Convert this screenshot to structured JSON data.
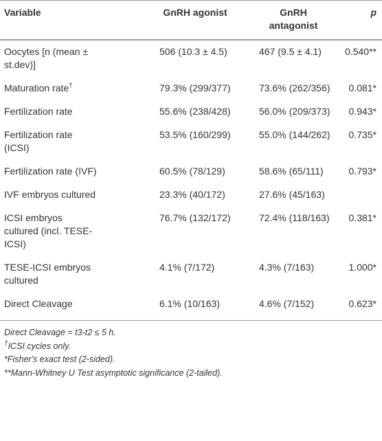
{
  "table": {
    "header": [
      "Variable",
      "GnRH agonist",
      "GnRH antagonist",
      "p"
    ],
    "rows": [
      [
        {
          "text": "Oocytes [n (mean ± st.dev)]",
          "mark": null
        },
        "506 (10.3 ± 4.5)",
        "467 (9.5 ± 4.1)",
        "0.540**"
      ],
      [
        {
          "text": "Maturation rate",
          "mark": "†"
        },
        "79.3% (299/377)",
        "73.6% (262/356)",
        "0.081*"
      ],
      [
        {
          "text": "Fertilization rate",
          "mark": null
        },
        "55.6% (238/428)",
        "56.0% (209/373)",
        "0.943*"
      ],
      [
        {
          "text": "Fertilization rate (ICSI)",
          "mark": null
        },
        "53.5% (160/299)",
        "55.0% (144/262)",
        "0.735*"
      ],
      [
        {
          "text": "Fertilization rate (IVF)",
          "mark": null
        },
        "60.5% (78/129)",
        "58.6% (65/111)",
        "0.793*"
      ],
      [
        {
          "text": "IVF embryos cultured",
          "mark": null
        },
        "23.3% (40/172)",
        "27.6% (45/163)",
        null
      ],
      [
        {
          "text": "ICSI embryos cultured (incl. TESE-ICSI)",
          "mark": null
        },
        "76.7% (132/172)",
        "72.4% (118/163)",
        "0.381*"
      ],
      [
        {
          "text": "TESE-ICSI embryos cultured",
          "mark": null
        },
        "4.1% (7/172)",
        "4.3% (7/163)",
        "1.000*"
      ],
      [
        {
          "text": "Direct Cleavage",
          "mark": null
        },
        "6.1% (10/163)",
        "4.6% (7/152)",
        "0.623*"
      ]
    ]
  },
  "notes": [
    {
      "mark": null,
      "text": "Direct Cleavage = t3-t2 ≤ 5 h."
    },
    {
      "mark": "†",
      "text": "ICSI cycles only."
    },
    {
      "mark": null,
      "text": "*Fisher's exact test (2-sided)."
    },
    {
      "mark": null,
      "text": "**Mann-Whitney U Test asymptotic significance (2-tailed)."
    }
  ]
}
